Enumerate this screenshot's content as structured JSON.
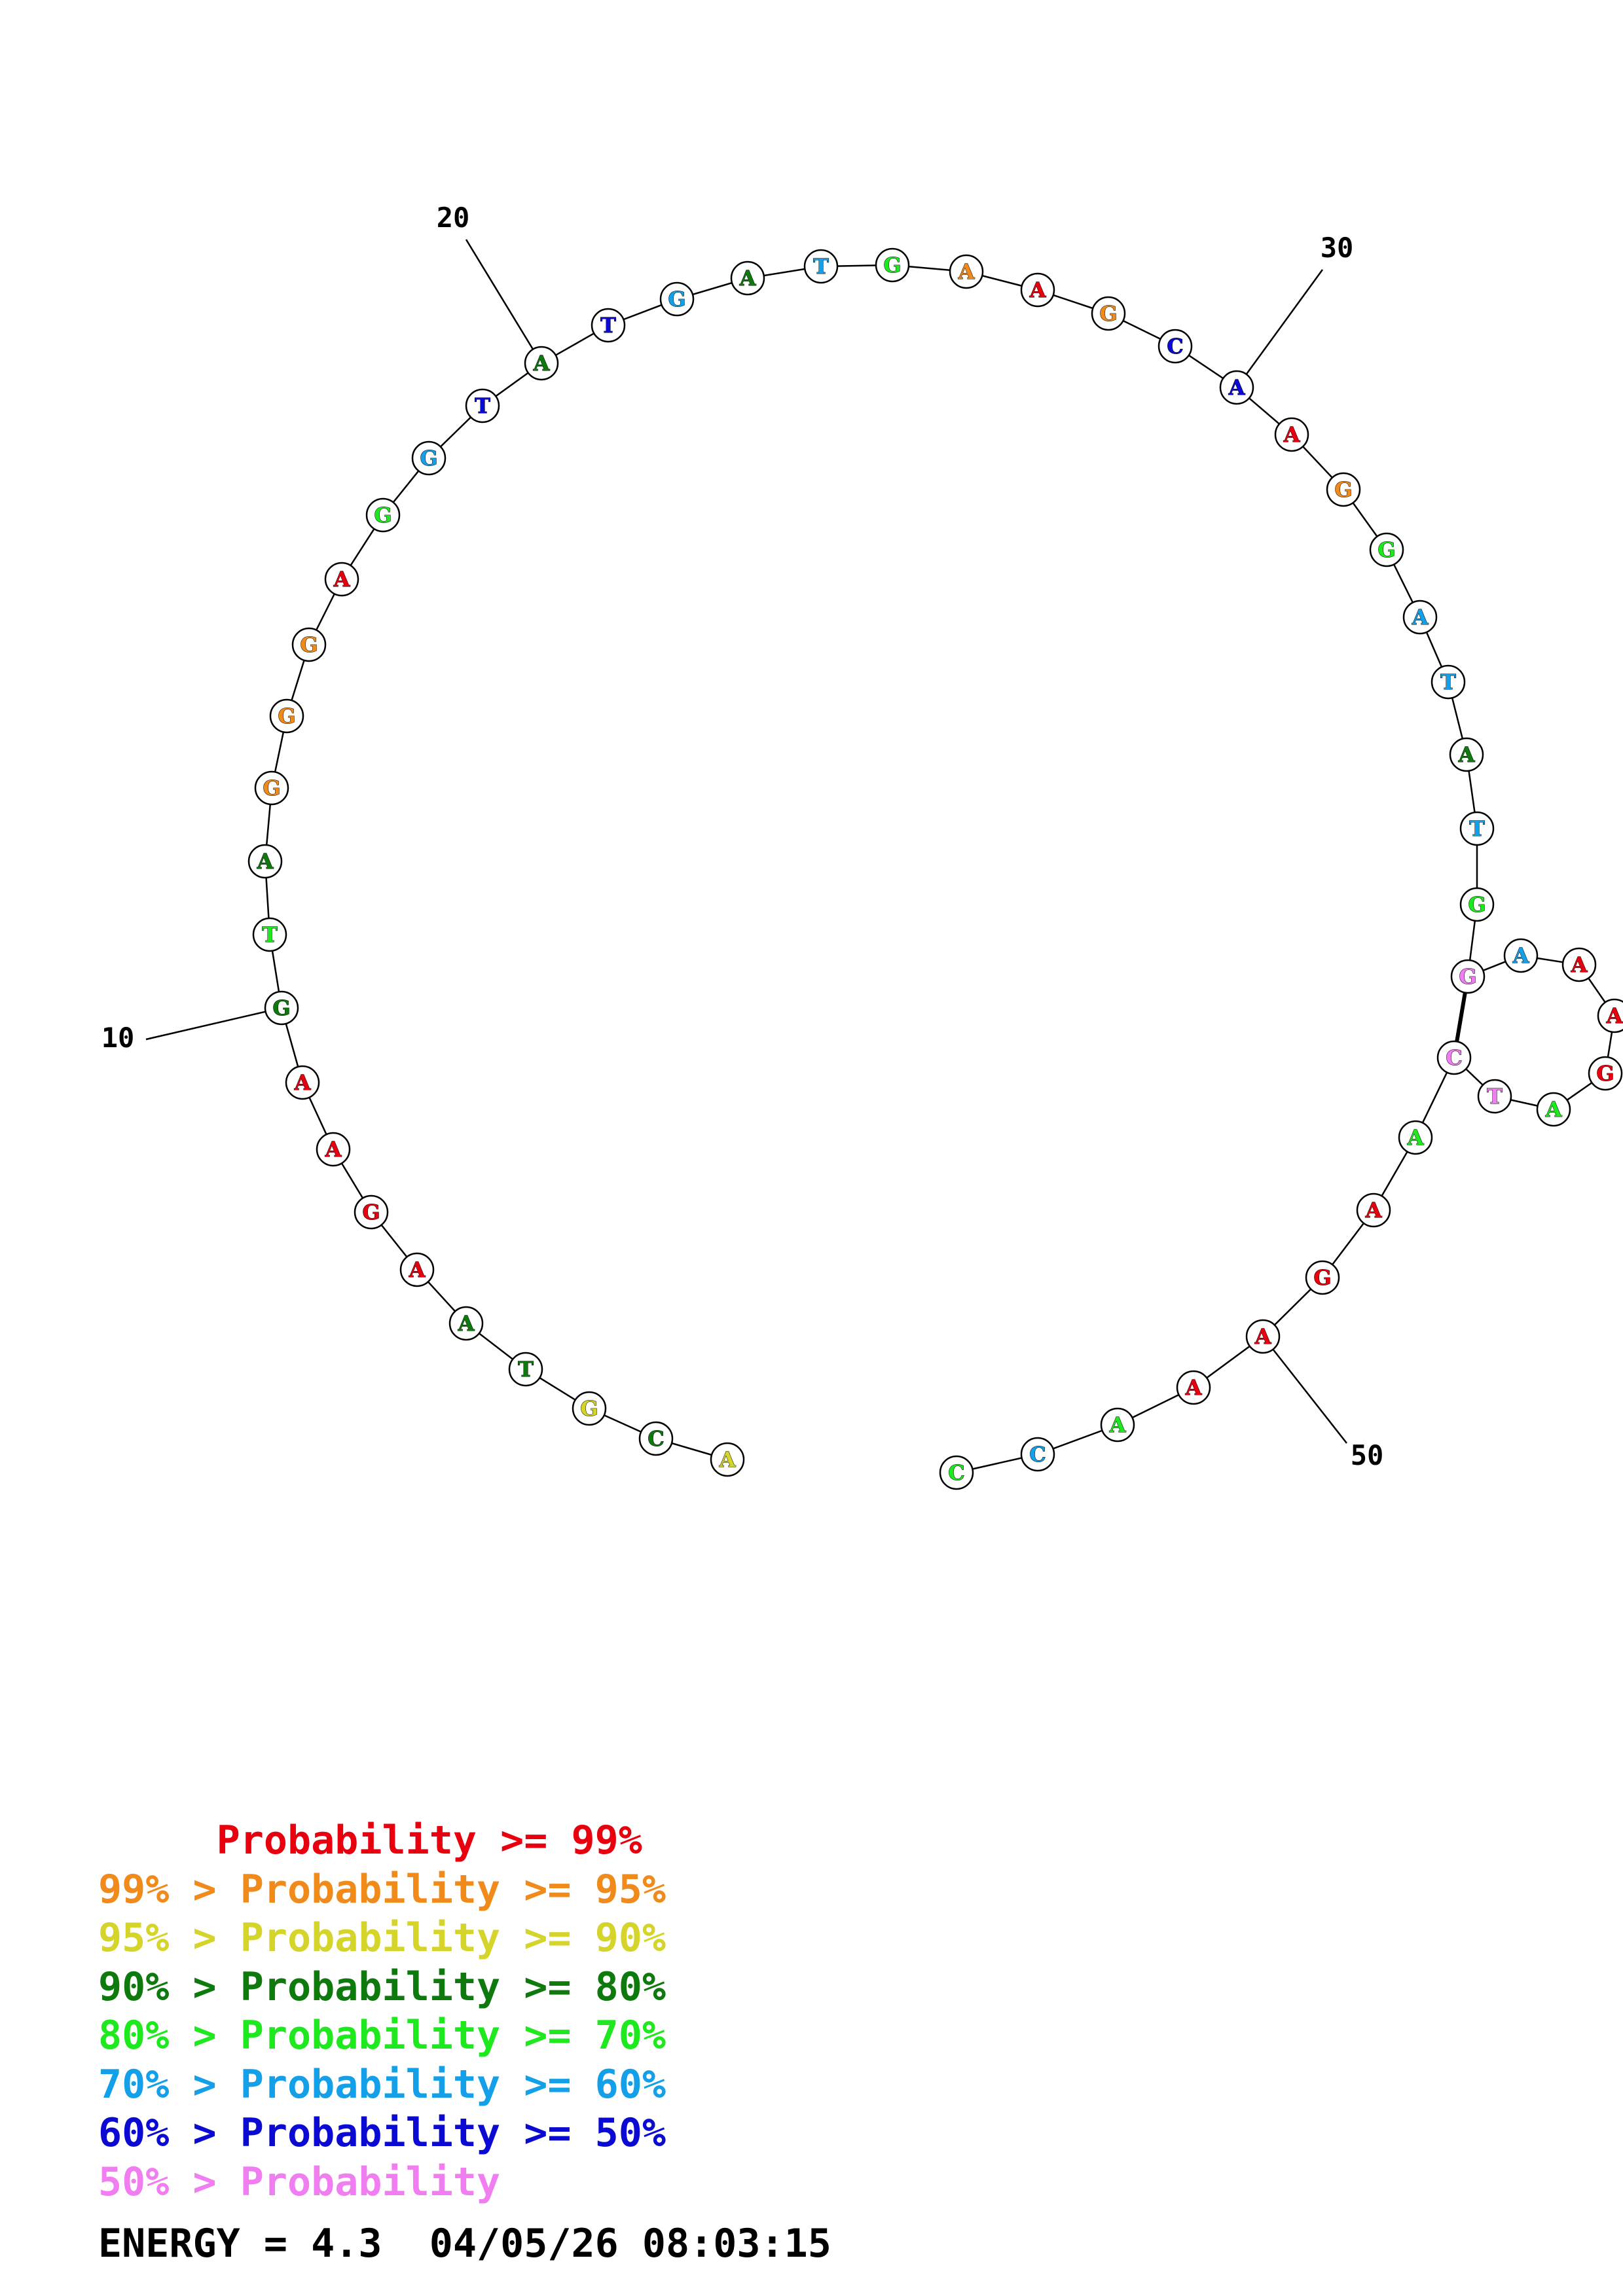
{
  "sequence": [
    {
      "n": 1,
      "base": "A",
      "color": "#d4d42a"
    },
    {
      "n": 2,
      "base": "C",
      "color": "#0e7a0e"
    },
    {
      "n": 3,
      "base": "G",
      "color": "#d4d42a"
    },
    {
      "n": 4,
      "base": "T",
      "color": "#0e7a0e"
    },
    {
      "n": 5,
      "base": "A",
      "color": "#0e7a0e"
    },
    {
      "n": 6,
      "base": "A",
      "color": "#e8000e"
    },
    {
      "n": 7,
      "base": "G",
      "color": "#e8000e"
    },
    {
      "n": 8,
      "base": "A",
      "color": "#e8000e"
    },
    {
      "n": 9,
      "base": "A",
      "color": "#e8000e"
    },
    {
      "n": 10,
      "base": "G",
      "color": "#0e7a0e"
    },
    {
      "n": 11,
      "base": "T",
      "color": "#1ee81e"
    },
    {
      "n": 12,
      "base": "A",
      "color": "#0e7a0e"
    },
    {
      "n": 13,
      "base": "G",
      "color": "#f08a1a"
    },
    {
      "n": 14,
      "base": "G",
      "color": "#f08a1a"
    },
    {
      "n": 15,
      "base": "G",
      "color": "#f08a1a"
    },
    {
      "n": 16,
      "base": "A",
      "color": "#e8000e"
    },
    {
      "n": 17,
      "base": "G",
      "color": "#1ee81e"
    },
    {
      "n": 18,
      "base": "G",
      "color": "#14a0e8"
    },
    {
      "n": 19,
      "base": "T",
      "color": "#0a0ad2"
    },
    {
      "n": 20,
      "base": "A",
      "color": "#0e7a0e"
    },
    {
      "n": 21,
      "base": "T",
      "color": "#0a0ad2"
    },
    {
      "n": 22,
      "base": "G",
      "color": "#14a0e8"
    },
    {
      "n": 23,
      "base": "A",
      "color": "#0e7a0e"
    },
    {
      "n": 24,
      "base": "T",
      "color": "#14a0e8"
    },
    {
      "n": 25,
      "base": "G",
      "color": "#1ee81e"
    },
    {
      "n": 26,
      "base": "A",
      "color": "#f08a1a"
    },
    {
      "n": 27,
      "base": "A",
      "color": "#e8000e"
    },
    {
      "n": 28,
      "base": "G",
      "color": "#f08a1a"
    },
    {
      "n": 29,
      "base": "C",
      "color": "#0a0ad2"
    },
    {
      "n": 30,
      "base": "A",
      "color": "#0a0ad2"
    },
    {
      "n": 31,
      "base": "A",
      "color": "#e8000e"
    },
    {
      "n": 32,
      "base": "G",
      "color": "#f08a1a"
    },
    {
      "n": 33,
      "base": "G",
      "color": "#1ee81e"
    },
    {
      "n": 34,
      "base": "A",
      "color": "#14a0e8"
    },
    {
      "n": 35,
      "base": "T",
      "color": "#14a0e8"
    },
    {
      "n": 36,
      "base": "A",
      "color": "#0e7a0e"
    },
    {
      "n": 37,
      "base": "T",
      "color": "#14a0e8"
    },
    {
      "n": 38,
      "base": "G",
      "color": "#1ee81e"
    },
    {
      "n": 39,
      "base": "G",
      "color": "#f07ef0"
    },
    {
      "n": 40,
      "base": "A",
      "color": "#14a0e8"
    },
    {
      "n": 41,
      "base": "A",
      "color": "#e8000e"
    },
    {
      "n": 42,
      "base": "A",
      "color": "#e8000e"
    },
    {
      "n": 43,
      "base": "G",
      "color": "#e8000e"
    },
    {
      "n": 44,
      "base": "A",
      "color": "#1ee81e"
    },
    {
      "n": 45,
      "base": "T",
      "color": "#f07ef0"
    },
    {
      "n": 46,
      "base": "C",
      "color": "#f07ef0"
    },
    {
      "n": 47,
      "base": "A",
      "color": "#1ee81e"
    },
    {
      "n": 48,
      "base": "A",
      "color": "#e8000e"
    },
    {
      "n": 49,
      "base": "G",
      "color": "#e8000e"
    },
    {
      "n": 50,
      "base": "A",
      "color": "#e8000e"
    },
    {
      "n": 51,
      "base": "A",
      "color": "#e8000e"
    },
    {
      "n": 52,
      "base": "A",
      "color": "#1ee81e"
    },
    {
      "n": 53,
      "base": "C",
      "color": "#14a0e8"
    },
    {
      "n": 54,
      "base": "C",
      "color": "#1ee81e"
    }
  ],
  "base_pairs": [
    [
      39,
      46
    ]
  ],
  "position_labels": [
    {
      "n": 10,
      "text": "10"
    },
    {
      "n": 20,
      "text": "20"
    },
    {
      "n": 30,
      "text": "30"
    },
    {
      "n": 50,
      "text": "50"
    }
  ],
  "legend": [
    {
      "text": "     Probability >= 99%",
      "color": "#e8000e"
    },
    {
      "text": "99% > Probability >= 95%",
      "color": "#f08a1a"
    },
    {
      "text": "95% > Probability >= 90%",
      "color": "#d4d42a"
    },
    {
      "text": "90% > Probability >= 80%",
      "color": "#0e7a0e"
    },
    {
      "text": "80% > Probability >= 70%",
      "color": "#1ee81e"
    },
    {
      "text": "70% > Probability >= 60%",
      "color": "#14a0e8"
    },
    {
      "text": "60% > Probability >= 50%",
      "color": "#0a0ad2"
    },
    {
      "text": "50% > Probability",
      "color": "#f07ef0"
    }
  ],
  "energy_text": "ENERGY = 4.3  04/05/26 08:03:15"
}
